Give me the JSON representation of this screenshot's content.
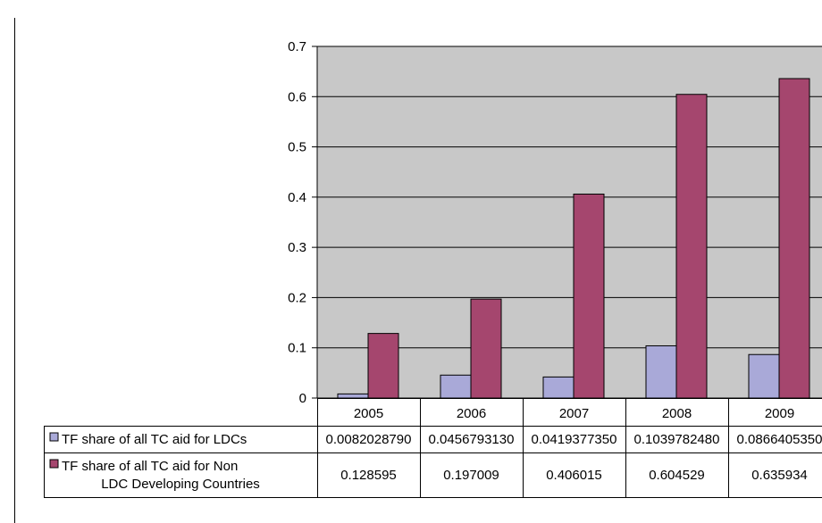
{
  "chart_data": {
    "type": "bar",
    "categories": [
      "2005",
      "2006",
      "2007",
      "2008",
      "2009"
    ],
    "series": [
      {
        "name": "TF share of all TC aid for LDCs",
        "values": [
          0.008202879,
          0.045679313,
          0.041937735,
          0.103978248,
          0.086640535
        ],
        "display": [
          "0.0082028790",
          "0.0456793130",
          "0.0419377350",
          "0.1039782480",
          "0.0866405350"
        ],
        "color": "#a9a9d8"
      },
      {
        "name_lines": [
          "TF share of all TC aid for Non",
          "LDC Developing Countries"
        ],
        "values": [
          0.128595,
          0.197009,
          0.406015,
          0.604529,
          0.635934
        ],
        "display": [
          "0.128595",
          "0.197009",
          "0.406015",
          "0.604529",
          "0.635934"
        ],
        "color": "#a5466e"
      }
    ],
    "ylim": [
      0,
      0.7
    ],
    "yticks": [
      "0",
      "0.1",
      "0.2",
      "0.3",
      "0.4",
      "0.5",
      "0.6",
      "0.7"
    ],
    "plot_background": "#c8c8c8",
    "grid": true,
    "legend": "data-table"
  }
}
